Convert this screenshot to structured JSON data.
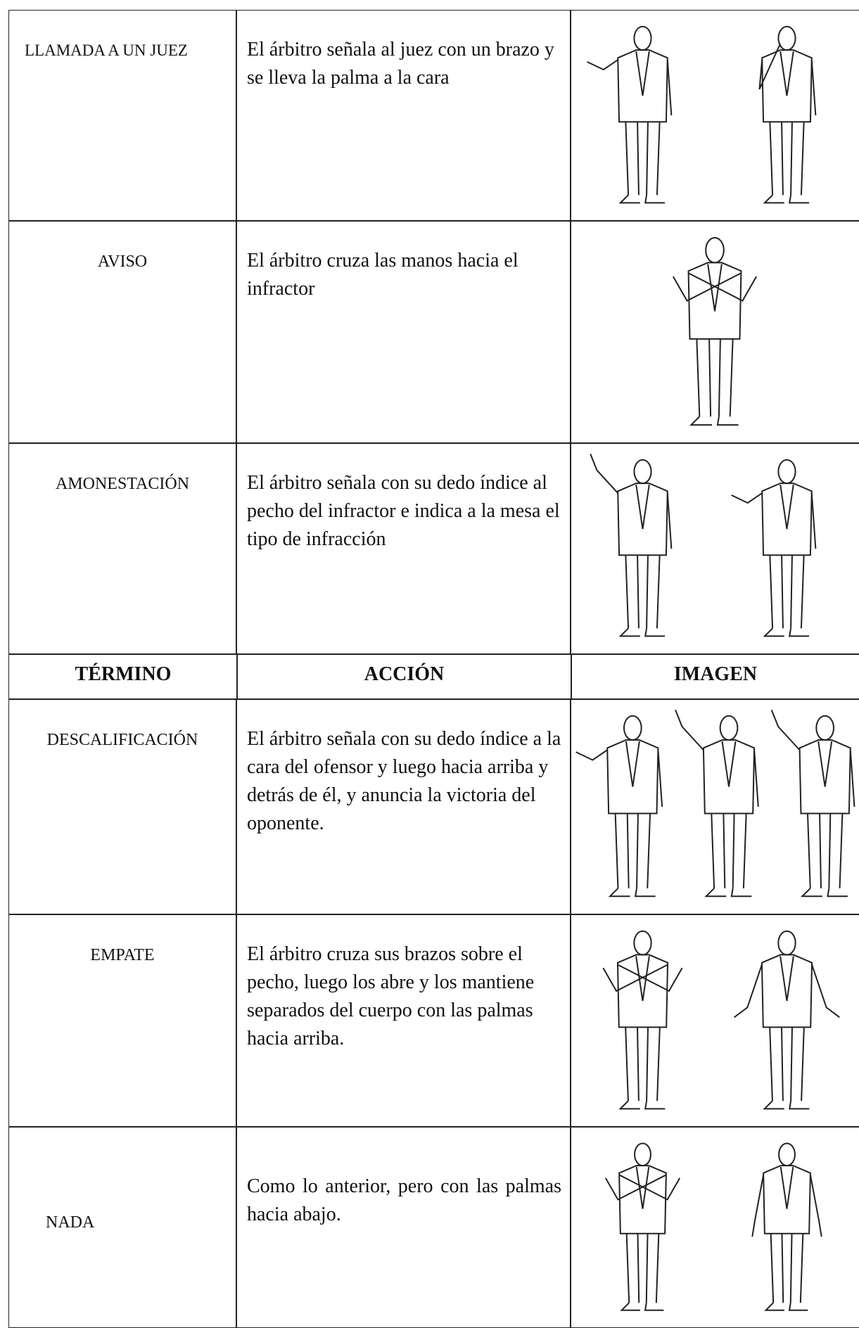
{
  "table": {
    "rows": [
      [
        "LLAMADA A UN JUEZ",
        "El árbitro señala al juez con un brazo y se lleva la palma a la cara"
      ],
      [
        "AVISO",
        "El árbitro cruza las manos hacia el infractor"
      ],
      [
        "AMONESTACIÓN",
        "El árbitro señala con su dedo índice al pecho del infractor e indica a la mesa el tipo de infracción"
      ],
      [
        "TÉRMINO",
        "ACCIÓN",
        "IMAGEN"
      ],
      [
        "DESCALIFICACIÓN",
        "El árbitro señala con su dedo índice a la cara del ofensor y luego hacia arriba y detrás de él, y anuncia la victoria del oponente."
      ],
      [
        "EMPATE",
        "El árbitro cruza sus brazos sobre el pecho, luego los abre y los mantiene separados del cuerpo con las palmas hacia arriba."
      ],
      [
        "NADA",
        "Como lo anterior, pero con las palmas hacia abajo."
      ]
    ]
  }
}
